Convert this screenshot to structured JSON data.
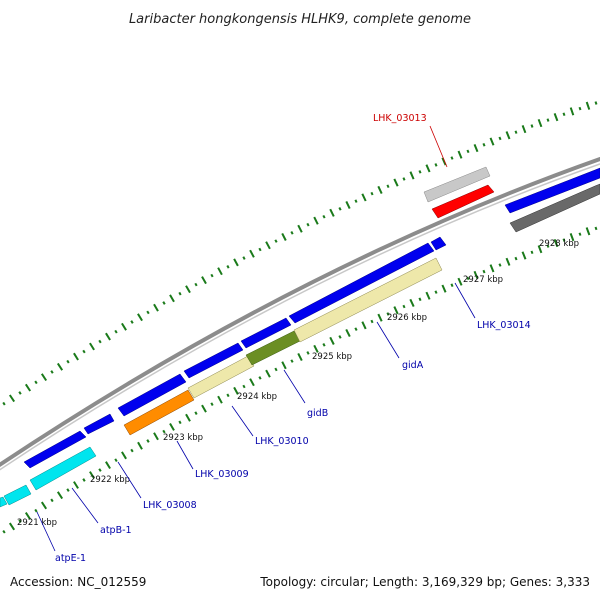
{
  "title": "Laribacter hongkongensis HLHK9, complete genome",
  "footer": {
    "accession": "Accession: NC_012559",
    "summary": "Topology: circular; Length: 3,169,329 bp; Genes: 3,333"
  },
  "colors": {
    "backbone": "#8c8c8c",
    "tick": "#1a7a1a",
    "cds_forward": "#0000ee",
    "cds_reverse": "#1a1aff",
    "highlight_label": "#cc0000",
    "label": "#0000aa",
    "atp": "#00e5ee",
    "gid": "#eee8aa",
    "gidB": "#6b8e23",
    "orange": "#ff8c00",
    "gray_light": "#c8c8c8",
    "gray_dark": "#696969",
    "red": "#ff0000"
  },
  "tick_labels": [
    "2921 kbp",
    "2922 kbp",
    "2923 kbp",
    "2924 kbp",
    "2925 kbp",
    "2926 kbp",
    "2927 kbp",
    "2928 kbp"
  ],
  "genes": [
    {
      "id": "atpE-1",
      "label": "atpE-1",
      "color": "label"
    },
    {
      "id": "atpB-1",
      "label": "atpB-1",
      "color": "label"
    },
    {
      "id": "LHK_03008",
      "label": "LHK_03008",
      "color": "label"
    },
    {
      "id": "LHK_03009",
      "label": "LHK_03009",
      "color": "label"
    },
    {
      "id": "LHK_03010",
      "label": "LHK_03010",
      "color": "label"
    },
    {
      "id": "gidB",
      "label": "gidB",
      "color": "label"
    },
    {
      "id": "gidA",
      "label": "gidA",
      "color": "label"
    },
    {
      "id": "LHK_03014",
      "label": "LHK_03014",
      "color": "label"
    },
    {
      "id": "LHK_03013",
      "label": "LHK_03013",
      "color": "highlight_label"
    }
  ]
}
